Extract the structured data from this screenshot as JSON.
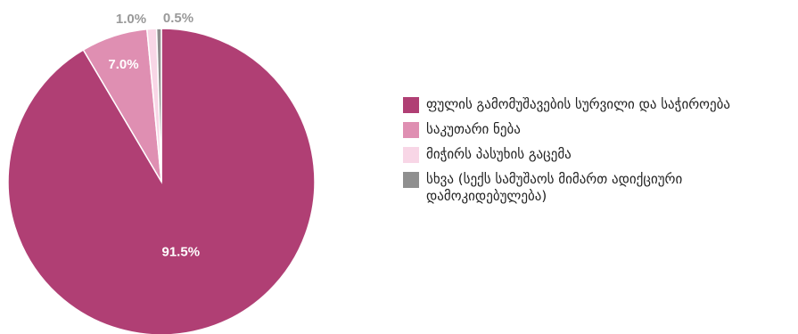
{
  "chart_data": {
    "type": "pie",
    "title": "",
    "slices": [
      {
        "label": "ფულის გამომუშავების სურვილი და საჭიროება",
        "value": 91.5,
        "value_label": "91.5%",
        "color": "#b03f74",
        "label_color": "#ffffff"
      },
      {
        "label": "საკუთარი ნება",
        "value": 7.0,
        "value_label": "7.0%",
        "color": "#df8fb2",
        "label_color": "#ffffff"
      },
      {
        "label": "მიჭირს პასუხის გაცემა",
        "value": 1.0,
        "value_label": "1.0%",
        "color": "#f8d6e6",
        "label_color": "#999999"
      },
      {
        "label": "სხვა (სექს სამუშაოს მიმართ ადიქციური დამოკიდებულება)",
        "value": 0.5,
        "value_label": "0.5%",
        "color": "#8f8f8f",
        "label_color": "#999999"
      }
    ],
    "legend_position": "right"
  }
}
